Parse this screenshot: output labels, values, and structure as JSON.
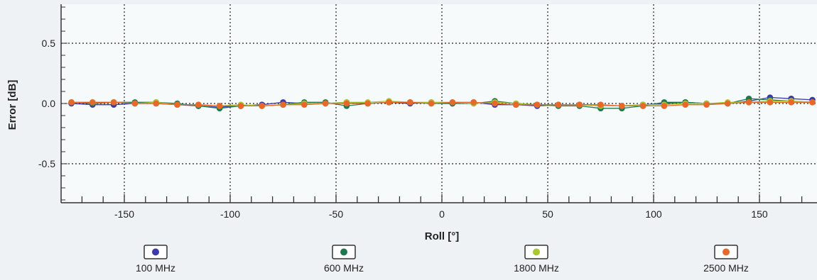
{
  "chart_data": {
    "type": "line",
    "xlabel": "Roll [°]",
    "ylabel": "Error [dB]",
    "xlim": [
      -180,
      180
    ],
    "ylim": [
      -0.8,
      0.8
    ],
    "x_major_ticks": [
      -150,
      -100,
      -50,
      0,
      50,
      100,
      150
    ],
    "x_minor_step": 10,
    "y_major_ticks": [
      0.5,
      0.0,
      -0.5
    ],
    "y_minor_step": 0.1,
    "y_tick_labels": [
      "0.5",
      "0.0",
      "-0.5"
    ],
    "x_tick_labels": [
      "-150",
      "-100",
      "-50",
      "0",
      "50",
      "100",
      "150"
    ],
    "grid": true,
    "legend_position": "bottom",
    "x": [
      -175,
      -165,
      -155,
      -145,
      -135,
      -125,
      -115,
      -105,
      -95,
      -85,
      -75,
      -65,
      -55,
      -45,
      -35,
      -25,
      -15,
      -5,
      5,
      15,
      25,
      35,
      45,
      55,
      65,
      75,
      85,
      95,
      105,
      115,
      125,
      135,
      145,
      155,
      165,
      175
    ],
    "series": [
      {
        "name": "100 MHz",
        "color": "#3b3aa8",
        "values": [
          0.0,
          -0.01,
          -0.01,
          0.0,
          0.0,
          -0.01,
          -0.02,
          -0.03,
          -0.02,
          -0.01,
          0.01,
          0.0,
          0.0,
          0.01,
          0.0,
          0.01,
          0.0,
          0.01,
          0.0,
          0.01,
          -0.01,
          -0.01,
          -0.02,
          -0.01,
          -0.01,
          -0.02,
          -0.02,
          -0.01,
          0.0,
          0.01,
          0.0,
          0.0,
          0.02,
          0.05,
          0.04,
          0.03
        ]
      },
      {
        "name": "600 MHz",
        "color": "#1e7a4e",
        "values": [
          0.01,
          0.0,
          0.01,
          0.01,
          0.01,
          0.0,
          -0.02,
          -0.04,
          -0.02,
          -0.02,
          -0.01,
          0.01,
          0.01,
          -0.02,
          0.0,
          0.01,
          0.01,
          0.0,
          0.0,
          0.0,
          0.02,
          0.0,
          -0.01,
          -0.02,
          -0.02,
          -0.04,
          -0.04,
          -0.02,
          0.01,
          0.01,
          0.0,
          0.0,
          0.04,
          0.03,
          0.02,
          0.01
        ]
      },
      {
        "name": "1800 MHz",
        "color": "#a8c82e",
        "values": [
          0.01,
          0.01,
          0.01,
          0.0,
          0.01,
          -0.01,
          -0.01,
          -0.02,
          -0.01,
          -0.02,
          -0.01,
          0.0,
          0.0,
          0.01,
          0.01,
          0.02,
          0.01,
          0.01,
          0.01,
          0.0,
          0.01,
          0.0,
          -0.01,
          -0.01,
          -0.01,
          -0.02,
          -0.02,
          -0.01,
          -0.01,
          0.0,
          0.0,
          0.01,
          0.01,
          0.02,
          0.02,
          0.01
        ]
      },
      {
        "name": "2500 MHz",
        "color": "#e8682a",
        "values": [
          0.01,
          0.01,
          0.01,
          0.0,
          0.0,
          -0.01,
          -0.01,
          -0.02,
          -0.02,
          -0.02,
          -0.01,
          -0.01,
          0.0,
          0.0,
          0.0,
          0.01,
          0.01,
          0.0,
          0.01,
          0.01,
          0.0,
          -0.01,
          -0.01,
          -0.01,
          -0.01,
          -0.01,
          -0.02,
          -0.02,
          -0.02,
          -0.01,
          -0.01,
          0.0,
          0.01,
          0.01,
          0.01,
          0.01
        ]
      }
    ]
  },
  "colors": {
    "background": "#eef2f4",
    "plot_background": "#f7fafb",
    "axis": "#333333",
    "grid": "#222222"
  }
}
